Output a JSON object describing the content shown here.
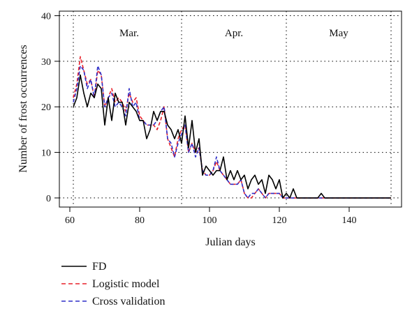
{
  "chart_data": {
    "type": "line",
    "xlabel": "Julian days",
    "ylabel": "Number of frost occurrences",
    "xlim": [
      57,
      155
    ],
    "ylim": [
      -2,
      41
    ],
    "xticks": [
      60,
      80,
      100,
      120,
      140
    ],
    "yticks": [
      0,
      10,
      20,
      30,
      40
    ],
    "grid": "dotted",
    "month_boundaries": [
      61,
      92,
      122,
      152
    ],
    "months": [
      {
        "label": "Mar.",
        "center": 77
      },
      {
        "label": "Apr.",
        "center": 107
      },
      {
        "label": "May",
        "center": 137
      }
    ],
    "legend_position": "bottom-left",
    "series": [
      {
        "name": "FD",
        "color": "#000000",
        "dash": "solid",
        "x": [
          61,
          62,
          63,
          64,
          65,
          66,
          67,
          68,
          69,
          70,
          71,
          72,
          73,
          74,
          75,
          76,
          77,
          78,
          79,
          80,
          81,
          82,
          83,
          84,
          85,
          86,
          87,
          88,
          89,
          90,
          91,
          92,
          93,
          94,
          95,
          96,
          97,
          98,
          99,
          100,
          101,
          102,
          103,
          104,
          105,
          106,
          107,
          108,
          109,
          110,
          111,
          112,
          113,
          114,
          115,
          116,
          117,
          118,
          119,
          120,
          121,
          122,
          123,
          124,
          125,
          126,
          127,
          128,
          129,
          130,
          131,
          132,
          133,
          134,
          135,
          136,
          137,
          138,
          139,
          140,
          141,
          142,
          143,
          144,
          145,
          146,
          147,
          148,
          149,
          150,
          151,
          152
        ],
        "y": [
          20,
          22,
          27,
          23,
          20,
          23,
          22,
          25,
          24,
          16,
          22,
          17,
          23,
          21,
          21,
          16,
          21,
          20,
          19,
          17,
          17,
          13,
          15,
          19,
          17,
          19,
          19,
          16,
          15,
          13,
          15,
          12,
          18,
          11,
          17,
          10,
          13,
          5,
          7,
          6,
          5,
          6,
          6,
          9,
          4,
          6,
          4,
          6,
          4,
          5,
          2,
          4,
          5,
          3,
          4,
          1,
          5,
          4,
          2,
          4,
          0,
          1,
          0,
          2,
          0,
          0,
          0,
          0,
          0,
          0,
          0,
          1,
          0,
          0,
          0,
          0,
          0,
          0,
          0,
          0,
          0,
          0,
          0,
          0,
          0,
          0,
          0,
          0,
          0,
          0,
          0,
          0
        ]
      },
      {
        "name": "Logistic model",
        "color": "#e8202a",
        "dash": "dashed",
        "x": [
          61,
          62,
          63,
          64,
          65,
          66,
          67,
          68,
          69,
          70,
          71,
          72,
          73,
          74,
          75,
          76,
          77,
          78,
          79,
          80,
          81,
          82,
          83,
          84,
          85,
          86,
          87,
          88,
          89,
          90,
          91,
          92,
          93,
          94,
          95,
          96,
          97,
          98,
          99,
          100,
          101,
          102,
          103,
          104,
          105,
          106,
          107,
          108,
          109,
          110,
          111,
          112,
          113,
          114,
          115,
          116,
          117,
          118,
          119,
          120,
          121,
          122,
          123,
          124,
          125,
          126,
          127,
          128,
          129,
          130,
          131,
          132,
          133,
          134,
          135,
          136,
          137,
          138,
          139,
          140,
          141,
          142,
          143,
          144,
          145,
          146,
          147,
          148,
          149,
          150,
          151,
          152
        ],
        "y": [
          22,
          25,
          31,
          28,
          25,
          26,
          22,
          28,
          27,
          20,
          22,
          24,
          21,
          22,
          21,
          19,
          23,
          21,
          22,
          18,
          17,
          16,
          16,
          16,
          15,
          17,
          20,
          13,
          11,
          9,
          13,
          15,
          16,
          10,
          12,
          10,
          11,
          6,
          5,
          5,
          6,
          8,
          6,
          5,
          4,
          3,
          3,
          3,
          4,
          1,
          0,
          0,
          1,
          2,
          1,
          0,
          1,
          1,
          1,
          1,
          0,
          0,
          0,
          0,
          0,
          0,
          0,
          0,
          0,
          0,
          0,
          0,
          0,
          0,
          0,
          0,
          0,
          0,
          0,
          0,
          0,
          0,
          0,
          0,
          0,
          0,
          0,
          0,
          0,
          0,
          0,
          0
        ]
      },
      {
        "name": "Cross validation",
        "color": "#2f2fc8",
        "dash": "dashed",
        "x": [
          61,
          62,
          63,
          64,
          65,
          66,
          67,
          68,
          69,
          70,
          71,
          72,
          73,
          74,
          75,
          76,
          77,
          78,
          79,
          80,
          81,
          82,
          83,
          84,
          85,
          86,
          87,
          88,
          89,
          90,
          91,
          92,
          93,
          94,
          95,
          96,
          97,
          98,
          99,
          100,
          101,
          102,
          103,
          104,
          105,
          106,
          107,
          108,
          109,
          110,
          111,
          112,
          113,
          114,
          115,
          116,
          117,
          118,
          119,
          120,
          121,
          122,
          123,
          124,
          125,
          126,
          127,
          128,
          129,
          130,
          131,
          132,
          133,
          134,
          135,
          136,
          137,
          138,
          139,
          140,
          141,
          142,
          143,
          144,
          145,
          146,
          147,
          148,
          149,
          150,
          151,
          152
        ],
        "y": [
          21,
          24,
          29,
          28,
          24,
          26,
          22,
          29,
          27,
          20,
          22,
          23,
          20,
          21,
          20,
          18,
          24,
          20,
          21,
          17,
          17,
          16,
          16,
          16,
          17,
          19,
          20,
          13,
          12,
          9,
          12,
          14,
          16,
          10,
          12,
          9,
          11,
          6,
          5,
          5,
          6,
          9,
          6,
          5,
          4,
          3,
          3,
          3,
          4,
          1,
          0,
          1,
          1,
          2,
          1,
          0,
          1,
          1,
          1,
          1,
          0,
          0,
          0,
          0,
          0,
          0,
          0,
          0,
          0,
          0,
          0,
          0,
          0,
          0,
          0,
          0,
          0,
          0,
          0,
          0,
          0,
          0,
          0,
          0,
          0,
          0,
          0,
          0,
          0,
          0,
          0,
          0
        ]
      }
    ]
  }
}
